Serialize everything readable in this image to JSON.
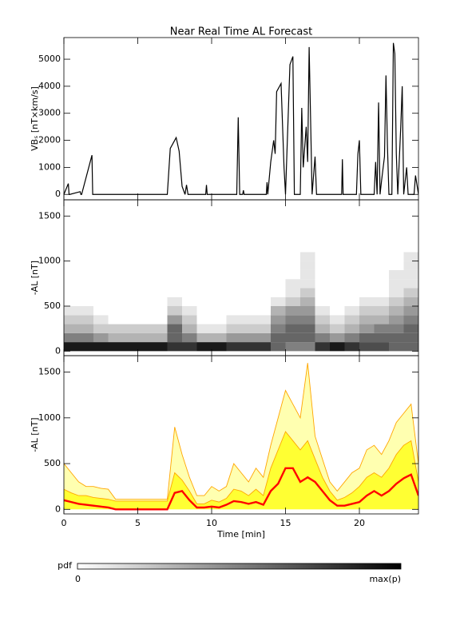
{
  "chart_data": [
    {
      "type": "line",
      "title": "Near Real Time AL Forecast",
      "ylabel": "VBₛ [nT×km/s]",
      "color": "#000000",
      "x": [
        0,
        0.3,
        0.35,
        0.4,
        1.1,
        1.15,
        1.2,
        1.9,
        1.95,
        2.0,
        7.0,
        7.2,
        7.4,
        7.6,
        7.8,
        8.0,
        8.2,
        8.3,
        8.4,
        9.6,
        9.65,
        9.7,
        11.7,
        11.8,
        11.9,
        12.1,
        12.15,
        12.2,
        13.7,
        13.75,
        13.8,
        14.0,
        14.2,
        14.3,
        14.4,
        14.7,
        14.9,
        15.0,
        15.3,
        15.5,
        15.6,
        16.0,
        16.1,
        16.2,
        16.4,
        16.5,
        16.6,
        16.8,
        17.0,
        17.1,
        17.2,
        18.8,
        18.85,
        18.9,
        19.8,
        19.9,
        20.0,
        20.1,
        21.0,
        21.1,
        21.2,
        21.3,
        21.4,
        21.5,
        21.7,
        21.8,
        21.9,
        22.0,
        22.2,
        22.3,
        22.4,
        22.5,
        22.6,
        22.8,
        22.9,
        23.0,
        23.2,
        23.3,
        23.6,
        23.7,
        23.8,
        24
      ],
      "values": [
        0,
        400,
        0,
        0,
        100,
        0,
        0,
        1450,
        0,
        0,
        0,
        1700,
        1900,
        2100,
        1600,
        300,
        0,
        350,
        0,
        0,
        350,
        0,
        0,
        2850,
        0,
        0,
        150,
        0,
        0,
        450,
        0,
        1200,
        2000,
        1500,
        3800,
        4100,
        1000,
        0,
        4800,
        5100,
        0,
        0,
        3200,
        1000,
        2500,
        1200,
        5450,
        0,
        1400,
        0,
        0,
        0,
        1300,
        0,
        0,
        1500,
        2000,
        0,
        0,
        1200,
        0,
        3400,
        0,
        500,
        1400,
        4400,
        1800,
        0,
        0,
        5600,
        5200,
        1500,
        0,
        2500,
        4000,
        0,
        1000,
        0,
        0,
        0,
        700,
        0
      ],
      "xlim": [
        0,
        24
      ],
      "ylim": [
        -200,
        5800
      ],
      "yticks": [
        0,
        1000,
        2000,
        3000,
        4000,
        5000
      ]
    },
    {
      "type": "heatmap",
      "ylabel": "-AL [nT]",
      "xbins": [
        0,
        1,
        2,
        3,
        4,
        5,
        6,
        7,
        8,
        9,
        10,
        11,
        12,
        13,
        14,
        15,
        16,
        17,
        18,
        19,
        20,
        21,
        22,
        23,
        24
      ],
      "ybins": [
        0,
        100,
        200,
        300,
        400,
        500,
        600,
        700,
        800,
        900,
        1000,
        1100,
        1200
      ],
      "z": [
        [
          0.9,
          0.5,
          0.3,
          0.2,
          0.1,
          0,
          0,
          0,
          0,
          0,
          0,
          0
        ],
        [
          0.9,
          0.5,
          0.3,
          0.2,
          0.1,
          0,
          0,
          0,
          0,
          0,
          0,
          0
        ],
        [
          0.9,
          0.4,
          0.2,
          0.1,
          0,
          0,
          0,
          0,
          0,
          0,
          0,
          0
        ],
        [
          0.9,
          0.3,
          0.2,
          0,
          0,
          0,
          0,
          0,
          0,
          0,
          0,
          0
        ],
        [
          0.9,
          0.3,
          0.2,
          0,
          0,
          0,
          0,
          0,
          0,
          0,
          0,
          0
        ],
        [
          0.9,
          0.3,
          0.2,
          0,
          0,
          0,
          0,
          0,
          0,
          0,
          0,
          0
        ],
        [
          0.9,
          0.3,
          0.2,
          0,
          0,
          0,
          0,
          0,
          0,
          0,
          0,
          0
        ],
        [
          0.8,
          0.6,
          0.6,
          0.4,
          0.2,
          0.1,
          0,
          0,
          0,
          0,
          0,
          0
        ],
        [
          0.8,
          0.5,
          0.3,
          0.2,
          0.1,
          0,
          0,
          0,
          0,
          0,
          0,
          0
        ],
        [
          0.9,
          0.3,
          0.1,
          0,
          0,
          0,
          0,
          0,
          0,
          0,
          0,
          0
        ],
        [
          0.9,
          0.3,
          0.1,
          0,
          0,
          0,
          0,
          0,
          0,
          0,
          0,
          0
        ],
        [
          0.8,
          0.4,
          0.2,
          0.1,
          0,
          0,
          0,
          0,
          0,
          0,
          0,
          0
        ],
        [
          0.8,
          0.4,
          0.2,
          0.1,
          0,
          0,
          0,
          0,
          0,
          0,
          0,
          0
        ],
        [
          0.8,
          0.4,
          0.2,
          0.1,
          0,
          0,
          0,
          0,
          0,
          0,
          0,
          0
        ],
        [
          0.6,
          0.6,
          0.5,
          0.4,
          0.3,
          0.1,
          0,
          0,
          0,
          0,
          0,
          0
        ],
        [
          0.5,
          0.6,
          0.6,
          0.5,
          0.4,
          0.2,
          0.1,
          0.1,
          0,
          0,
          0,
          0
        ],
        [
          0.5,
          0.6,
          0.6,
          0.5,
          0.4,
          0.3,
          0.2,
          0.1,
          0.1,
          0.1,
          0.1,
          0
        ],
        [
          0.8,
          0.5,
          0.3,
          0.2,
          0.1,
          0,
          0,
          0,
          0,
          0,
          0,
          0
        ],
        [
          0.9,
          0.4,
          0.2,
          0.1,
          0,
          0,
          0,
          0,
          0,
          0,
          0,
          0
        ],
        [
          0.8,
          0.5,
          0.3,
          0.2,
          0.1,
          0,
          0,
          0,
          0,
          0,
          0,
          0
        ],
        [
          0.7,
          0.6,
          0.4,
          0.3,
          0.2,
          0.1,
          0,
          0,
          0,
          0,
          0,
          0
        ],
        [
          0.7,
          0.6,
          0.5,
          0.3,
          0.2,
          0.1,
          0,
          0,
          0,
          0,
          0,
          0
        ],
        [
          0.6,
          0.6,
          0.5,
          0.4,
          0.3,
          0.2,
          0.1,
          0.1,
          0.1,
          0,
          0,
          0
        ],
        [
          0.6,
          0.6,
          0.6,
          0.5,
          0.4,
          0.3,
          0.2,
          0.1,
          0.1,
          0.1,
          0.1,
          0
        ]
      ],
      "xlim": [
        0,
        24
      ],
      "ylim": [
        -50,
        1680
      ],
      "yticks": [
        0,
        500,
        1000,
        1500
      ],
      "colorbar": {
        "label": "pdf",
        "min_label": "0",
        "max_label": "max(p)"
      }
    },
    {
      "type": "band",
      "ylabel": "-AL [nT]",
      "xlabel": "Time [min]",
      "edge_color": "#ffa500",
      "x": [
        0,
        0.5,
        1,
        1.5,
        2,
        2.5,
        3,
        3.5,
        4,
        4.5,
        5,
        5.5,
        6,
        6.5,
        7,
        7.5,
        8,
        8.5,
        9,
        9.5,
        10,
        10.5,
        11,
        11.5,
        12,
        12.5,
        13,
        13.5,
        14,
        14.5,
        15,
        15.5,
        16,
        16.5,
        17,
        17.5,
        18,
        18.5,
        19,
        19.5,
        20,
        20.5,
        21,
        21.5,
        22,
        22.5,
        23,
        23.5,
        24
      ],
      "series": [
        {
          "kind": "area",
          "color": "#ffffb0",
          "values": [
            500,
            400,
            300,
            250,
            250,
            230,
            220,
            110,
            110,
            110,
            110,
            110,
            110,
            110,
            110,
            900,
            600,
            350,
            150,
            150,
            250,
            200,
            250,
            500,
            400,
            300,
            450,
            350,
            700,
            1000,
            1300,
            1150,
            1000,
            1600,
            800,
            550,
            300,
            200,
            300,
            400,
            450,
            650,
            700,
            600,
            750,
            950,
            1050,
            1150,
            500
          ]
        },
        {
          "kind": "area",
          "color": "#ffff33",
          "values": [
            220,
            180,
            150,
            150,
            130,
            120,
            110,
            90,
            90,
            90,
            90,
            90,
            90,
            90,
            90,
            400,
            320,
            200,
            60,
            60,
            100,
            80,
            120,
            220,
            200,
            150,
            220,
            150,
            450,
            650,
            850,
            750,
            650,
            750,
            550,
            350,
            200,
            100,
            130,
            180,
            250,
            350,
            400,
            350,
            450,
            600,
            700,
            750,
            300
          ]
        },
        {
          "kind": "line",
          "color": "#ff0000",
          "values": [
            100,
            80,
            60,
            50,
            40,
            30,
            20,
            0,
            0,
            0,
            0,
            0,
            0,
            0,
            0,
            180,
            200,
            100,
            20,
            20,
            30,
            20,
            50,
            90,
            80,
            60,
            80,
            50,
            200,
            280,
            450,
            450,
            300,
            350,
            300,
            200,
            100,
            40,
            40,
            60,
            80,
            150,
            200,
            150,
            200,
            280,
            340,
            380,
            150
          ]
        }
      ],
      "xlim": [
        0,
        24
      ],
      "ylim": [
        -50,
        1680
      ],
      "yticks": [
        0,
        500,
        1000,
        1500
      ],
      "xticks": [
        0,
        5,
        10,
        15,
        20
      ]
    }
  ]
}
